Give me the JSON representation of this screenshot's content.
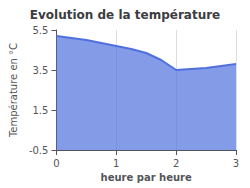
{
  "chart_data": {
    "type": "area",
    "title": "Evolution de la température",
    "xlabel": "heure par heure",
    "ylabel": "Température en °C",
    "x": [
      0,
      0.25,
      0.5,
      0.75,
      1.0,
      1.25,
      1.5,
      1.75,
      2.0,
      2.25,
      2.5,
      2.75,
      3.0
    ],
    "values": [
      5.2,
      5.1,
      5.0,
      4.85,
      4.7,
      4.55,
      4.35,
      4.0,
      3.5,
      3.55,
      3.6,
      3.7,
      3.8
    ],
    "xlim": [
      0,
      3
    ],
    "ylim": [
      -0.5,
      5.5
    ],
    "xticks": [
      0,
      1,
      2,
      3
    ],
    "yticks": [
      -0.5,
      1.5,
      3.5,
      5.5
    ],
    "grid": "x"
  }
}
